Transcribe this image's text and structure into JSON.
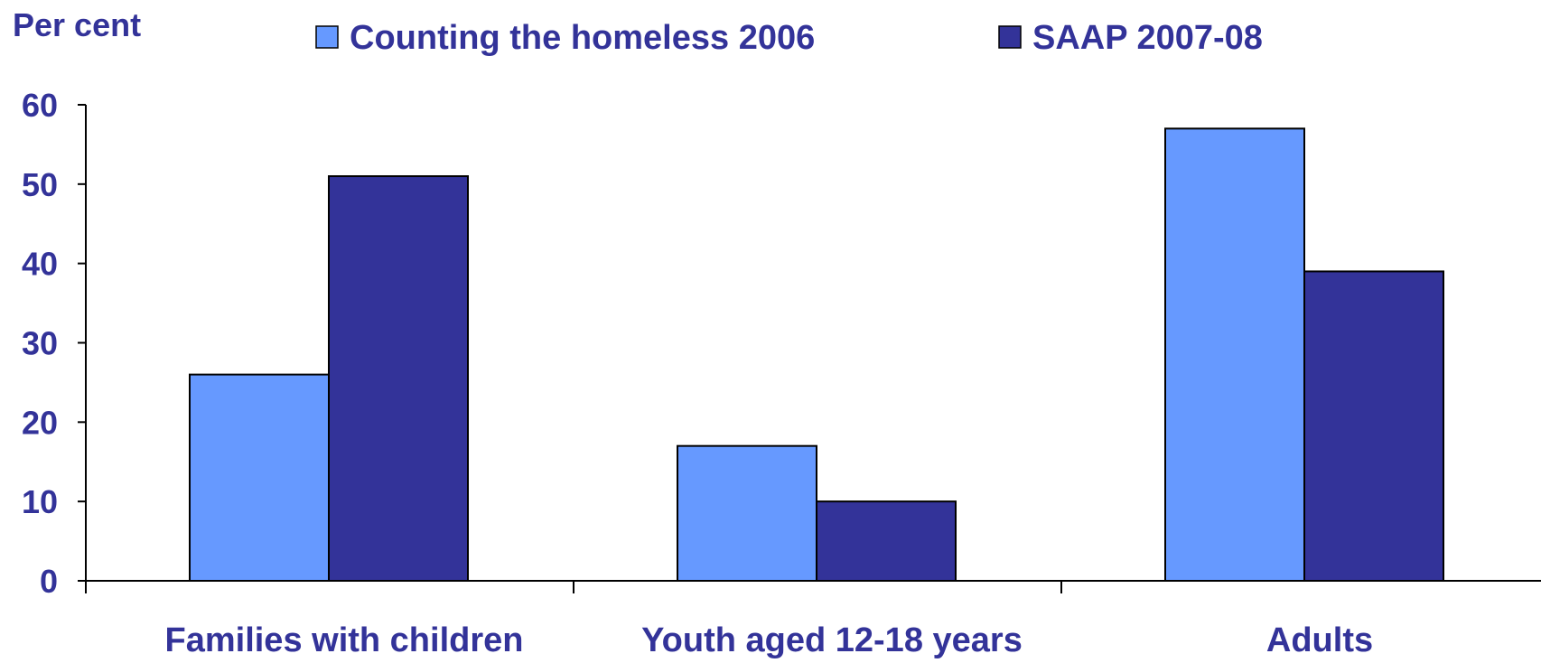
{
  "chart_data": {
    "type": "bar",
    "ylabel": "Per cent",
    "categories": [
      "Families with children",
      "Youth aged 12-18 years",
      "Adults"
    ],
    "series": [
      {
        "name": "Counting the homeless 2006",
        "values": [
          26,
          17,
          57
        ],
        "color": "#6699ff"
      },
      {
        "name": "SAAP 2007-08",
        "values": [
          51,
          10,
          39
        ],
        "color": "#333399"
      }
    ],
    "yticks": [
      "0",
      "10",
      "20",
      "30",
      "40",
      "50",
      "60"
    ],
    "ylim": [
      0,
      60
    ],
    "legend_position": "top",
    "grid": false,
    "text_color": "#333399",
    "axis_color": "#000000"
  }
}
